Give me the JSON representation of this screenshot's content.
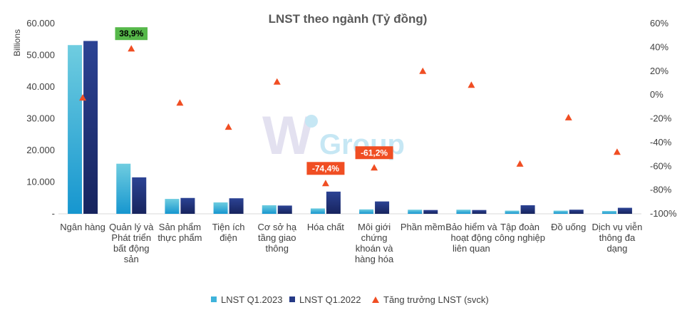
{
  "chart_data": {
    "type": "bar",
    "title": "LNST theo ngành (Tỷ đồng)",
    "ylabel": "Billions",
    "ylim": [
      0,
      60000
    ],
    "y_ticks": [
      "-",
      "10.000",
      "20.000",
      "30.000",
      "40.000",
      "50.000",
      "60.000"
    ],
    "y2lim": [
      -100,
      60
    ],
    "y2_ticks": [
      "-100%",
      "-80%",
      "-60%",
      "-40%",
      "-20%",
      "0%",
      "20%",
      "40%",
      "60%"
    ],
    "grid": false,
    "legend_position": "bottom",
    "categories": [
      "Ngân hàng",
      "Quản lý và Phát triển bất động sản",
      "Sản phẩm thực phẩm",
      "Tiện ích điện",
      "Cơ sở hạ tầng giao thông",
      "Hóa chất",
      "Môi giới chứng khoán và hàng hóa",
      "Phần mềm",
      "Bảo hiểm và hoạt động liên quan",
      "Tập đoàn công nghiệp",
      "Đồ uống",
      "Dịch vụ viễn thông đa dạng"
    ],
    "category_label_lines": [
      [
        "Ngân hàng"
      ],
      [
        "Quản lý và",
        "Phát triển",
        "bất động",
        "sản"
      ],
      [
        "Sản phẩm",
        "thực phẩm"
      ],
      [
        "Tiện ích",
        "điện"
      ],
      [
        "Cơ sở hạ",
        "tầng giao",
        "thông"
      ],
      [
        "Hóa chất"
      ],
      [
        "Môi giới",
        "chứng",
        "khoán và",
        "hàng hóa"
      ],
      [
        "Phần mềm"
      ],
      [
        "Bảo hiểm và",
        "hoạt động",
        "liên quan"
      ],
      [
        "Tập đoàn",
        "công nghiệp"
      ],
      [
        "Đồ uống"
      ],
      [
        "Dịch vụ viễn",
        "thông đa",
        "dạng"
      ]
    ],
    "series": [
      {
        "name": "LNST Q1.2023",
        "axis": "left",
        "kind": "bar",
        "color": "#5BC4DC",
        "values": [
          53200,
          15800,
          4700,
          3600,
          2700,
          1700,
          1400,
          1300,
          1300,
          1000,
          1000,
          900
        ]
      },
      {
        "name": "LNST Q1.2022",
        "axis": "left",
        "kind": "bar",
        "color": "#263A86",
        "values": [
          54500,
          11500,
          5000,
          4900,
          2600,
          7000,
          3900,
          1200,
          1200,
          2700,
          1300,
          1900
        ]
      },
      {
        "name": "Tăng trưởng LNST (svck)",
        "axis": "right",
        "kind": "marker",
        "color": "#F04E23",
        "values": [
          -2.4,
          38.9,
          -6.7,
          -27,
          11,
          -74.4,
          -61.2,
          20,
          8.3,
          -58,
          -19,
          -48
        ]
      }
    ],
    "annotations": [
      {
        "category_index": 1,
        "text": "38,9%",
        "bg": "#56B84A",
        "fg": "#000000"
      },
      {
        "category_index": 5,
        "text": "-74,4%",
        "bg": "#F04E23",
        "fg": "#ffffff"
      },
      {
        "category_index": 6,
        "text": "-61,2%",
        "bg": "#F04E23",
        "fg": "#ffffff"
      }
    ]
  },
  "watermark": {
    "logo_letter": "W",
    "text": "Group"
  }
}
